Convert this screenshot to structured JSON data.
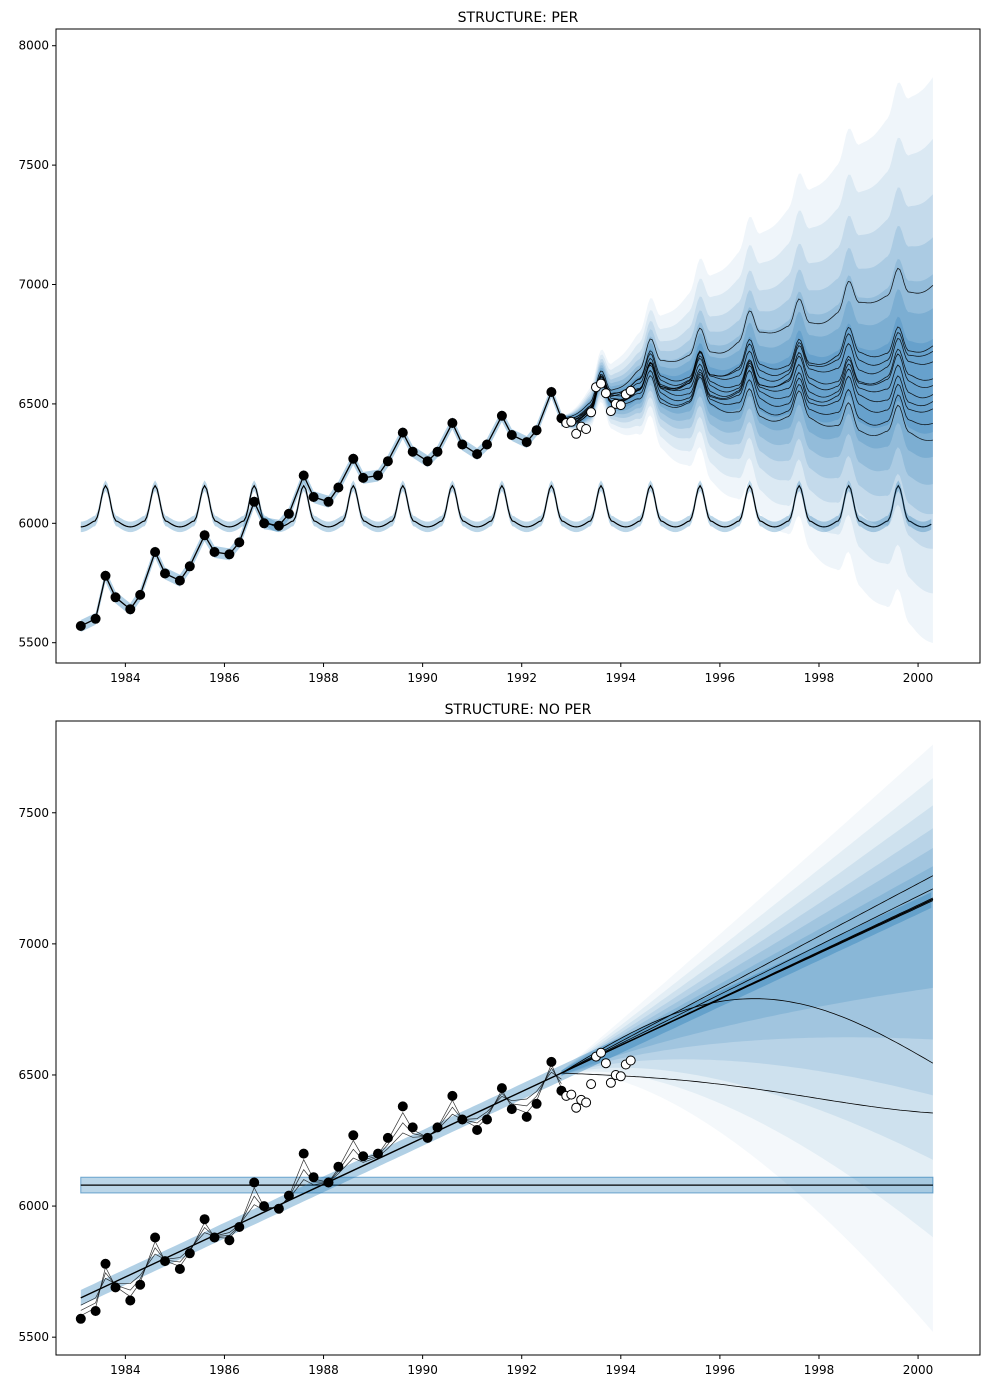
{
  "chart_data": [
    {
      "type": "line",
      "title": "STRUCTURE: PER",
      "xlabel": "",
      "ylabel": "",
      "xlim": [
        1982.6,
        2001.25
      ],
      "ylim": [
        5415,
        8070
      ],
      "x_ticks": [
        1984,
        1986,
        1988,
        1990,
        1992,
        1994,
        1996,
        1998,
        2000
      ],
      "y_ticks": [
        5500,
        6000,
        6500,
        7000,
        7500,
        8000
      ],
      "grid": false,
      "legend": "none",
      "observed_points": {
        "marker": "filled-black",
        "x": [
          1983.1,
          1983.4,
          1983.6,
          1983.8,
          1984.1,
          1984.3,
          1984.6,
          1984.8,
          1985.1,
          1985.3,
          1985.6,
          1985.8,
          1986.1,
          1986.3,
          1986.6,
          1986.8,
          1987.1,
          1987.3,
          1987.6,
          1987.8,
          1988.1,
          1988.3,
          1988.6,
          1988.8,
          1989.1,
          1989.3,
          1989.6,
          1989.8,
          1990.1,
          1990.3,
          1990.6,
          1990.8,
          1991.1,
          1991.3,
          1991.6,
          1991.8,
          1992.1,
          1992.3,
          1992.6,
          1992.8
        ],
        "y": [
          5570,
          5600,
          5780,
          5690,
          5640,
          5700,
          5880,
          5790,
          5760,
          5820,
          5950,
          5880,
          5870,
          5920,
          6090,
          6000,
          5990,
          6040,
          6200,
          6110,
          6090,
          6150,
          6270,
          6190,
          6200,
          6260,
          6380,
          6300,
          6260,
          6300,
          6420,
          6330,
          6290,
          6330,
          6450,
          6370,
          6340,
          6390,
          6550,
          6440
        ]
      },
      "heldout_points": {
        "marker": "open-white",
        "x": [
          1992.9,
          1993.0,
          1993.1,
          1993.2,
          1993.3,
          1993.4,
          1993.5,
          1993.6,
          1993.7,
          1993.8,
          1993.9,
          1994.0,
          1994.1,
          1994.2
        ],
        "y": [
          6420,
          6425,
          6375,
          6405,
          6395,
          6465,
          6570,
          6585,
          6545,
          6470,
          6500,
          6495,
          6540,
          6555
        ]
      },
      "fan": {
        "center": 6580,
        "seasonal_amplitude": 110,
        "end_upper": 7940,
        "end_lower": 5610
      },
      "periodic_component": {
        "mean": 6030,
        "amplitude": 150
      },
      "sample_curves_end_values": [
        7095,
        6830,
        6800,
        6760,
        6700,
        6680,
        6640,
        6600,
        6560,
        6500,
        6440
      ],
      "colors": {
        "band": "#1f77b4",
        "line": "#000000",
        "marker": "#000000",
        "open_marker_fill": "#ffffff"
      }
    },
    {
      "type": "line",
      "title": "STRUCTURE: NO PER",
      "xlabel": "",
      "ylabel": "",
      "xlim": [
        1982.6,
        2001.25
      ],
      "ylim": [
        5432,
        7850
      ],
      "x_ticks": [
        1984,
        1986,
        1988,
        1990,
        1992,
        1994,
        1996,
        1998,
        2000
      ],
      "y_ticks": [
        5500,
        6000,
        6500,
        7000,
        7500
      ],
      "grid": false,
      "legend": "none",
      "observed_points": {
        "marker": "filled-black",
        "x": [
          1983.1,
          1983.4,
          1983.6,
          1983.8,
          1984.1,
          1984.3,
          1984.6,
          1984.8,
          1985.1,
          1985.3,
          1985.6,
          1985.8,
          1986.1,
          1986.3,
          1986.6,
          1986.8,
          1987.1,
          1987.3,
          1987.6,
          1987.8,
          1988.1,
          1988.3,
          1988.6,
          1988.8,
          1989.1,
          1989.3,
          1989.6,
          1989.8,
          1990.1,
          1990.3,
          1990.6,
          1990.8,
          1991.1,
          1991.3,
          1991.6,
          1991.8,
          1992.1,
          1992.3,
          1992.6,
          1992.8
        ],
        "y": [
          5570,
          5600,
          5780,
          5690,
          5640,
          5700,
          5880,
          5790,
          5760,
          5820,
          5950,
          5880,
          5870,
          5920,
          6090,
          6000,
          5990,
          6040,
          6200,
          6110,
          6090,
          6150,
          6270,
          6190,
          6200,
          6260,
          6380,
          6300,
          6260,
          6300,
          6420,
          6330,
          6290,
          6330,
          6450,
          6370,
          6340,
          6390,
          6550,
          6440
        ]
      },
      "heldout_points": {
        "marker": "open-white",
        "x": [
          1992.9,
          1993.0,
          1993.1,
          1993.2,
          1993.3,
          1993.4,
          1993.5,
          1993.6,
          1993.7,
          1993.8,
          1993.9,
          1994.0,
          1994.1,
          1994.2
        ],
        "y": [
          6420,
          6425,
          6375,
          6405,
          6395,
          6465,
          6570,
          6585,
          6545,
          6470,
          6500,
          6495,
          6540,
          6555
        ]
      },
      "trend": {
        "start": [
          1983.1,
          5650
        ],
        "end": [
          2000.3,
          7170
        ]
      },
      "fan": {
        "end_upper": 7750,
        "end_lower": 5530
      },
      "flat_component": {
        "value": 6080,
        "band": [
          6050,
          6110
        ]
      },
      "sample_curves_end_values": [
        7260,
        7210,
        7175,
        7165,
        6545,
        6355
      ],
      "colors": {
        "band": "#1f77b4",
        "line": "#000000",
        "marker": "#000000",
        "open_marker_fill": "#ffffff"
      }
    }
  ]
}
